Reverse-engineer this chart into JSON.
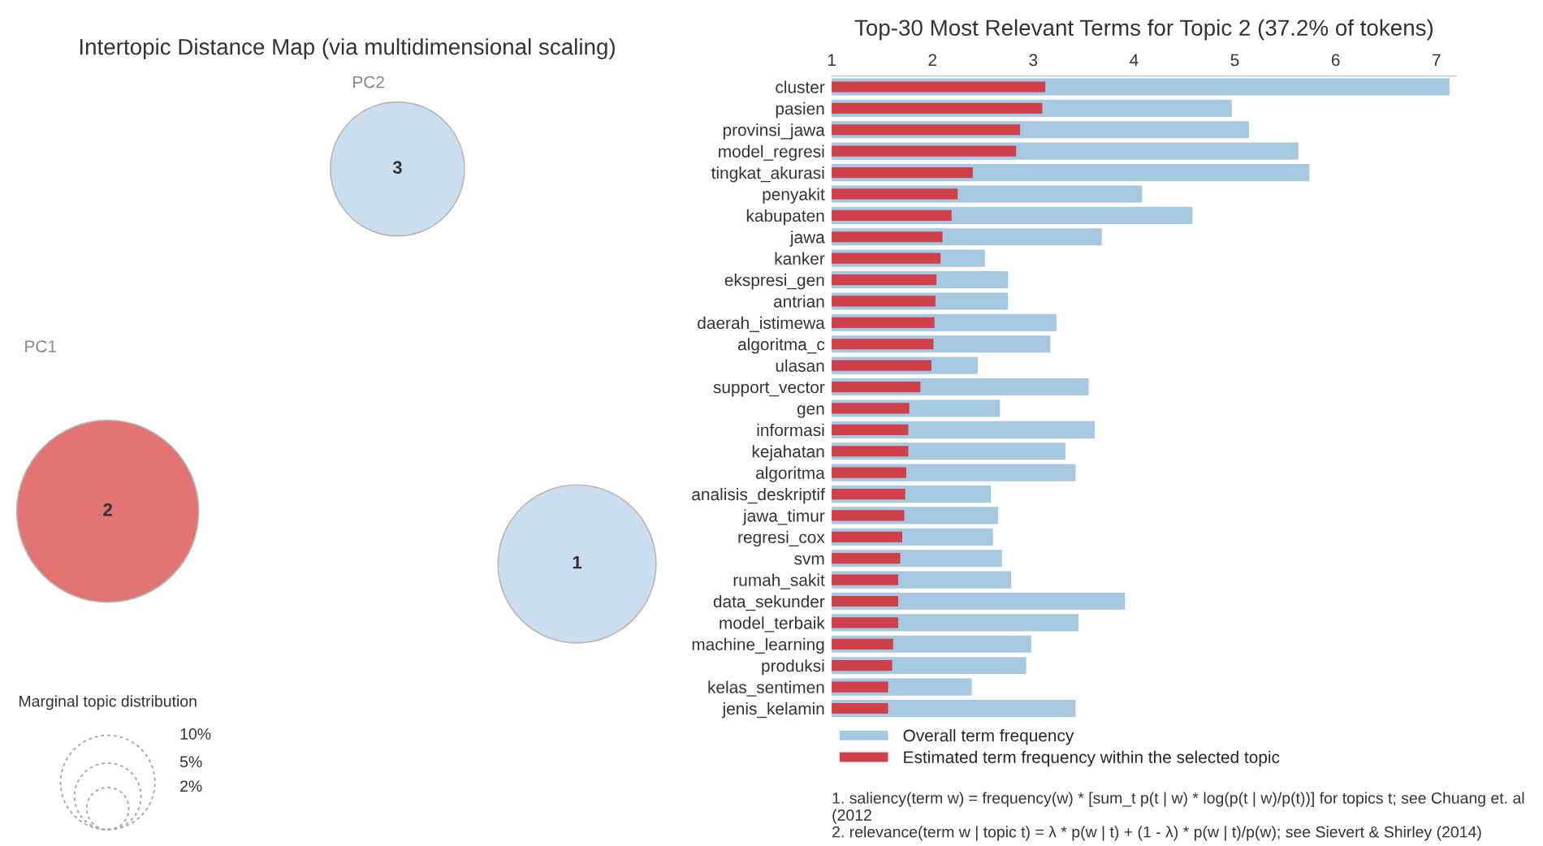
{
  "chart_data": [
    {
      "type": "other",
      "title": "Intertopic Distance Map (via multidimensional scaling)",
      "xlabel": "PC1",
      "ylabel": "PC2",
      "annotations": [
        "1",
        "2",
        "3",
        "Marginal topic distribution",
        "2%",
        "5%",
        "10%"
      ]
    },
    {
      "type": "bar",
      "orientation": "horizontal",
      "title": "Top-30 Most Relevant Terms for Topic 2 (37.2% of tokens)",
      "categories": [
        "cluster",
        "pasien",
        "provinsi_jawa",
        "model_regresi",
        "tingkat_akurasi",
        "penyakit",
        "kabupaten",
        "jawa",
        "kanker",
        "ekspresi_gen",
        "antrian",
        "daerah_istimewa",
        "algoritma_c",
        "ulasan",
        "support_vector",
        "gen",
        "informasi",
        "kejahatan",
        "algoritma",
        "analisis_deskriptif",
        "jawa_timur",
        "regresi_cox",
        "svm",
        "rumah_sakit",
        "data_sekunder",
        "model_terbaik",
        "machine_learning",
        "produksi",
        "kelas_sentimen",
        "jenis_kelamin"
      ],
      "series": [
        {
          "name": "Overall term frequency",
          "color": "#a6c8e0",
          "values": [
            7.13,
            4.97,
            5.14,
            5.63,
            5.74,
            4.08,
            4.58,
            3.68,
            2.52,
            2.75,
            2.75,
            3.23,
            3.17,
            2.45,
            3.55,
            2.67,
            3.61,
            3.32,
            3.42,
            2.58,
            2.65,
            2.6,
            2.69,
            2.78,
            3.91,
            3.45,
            2.98,
            2.93,
            2.39,
            3.42
          ]
        },
        {
          "name": "Estimated term frequency within the selected topic",
          "color": "#d0404a",
          "values": [
            3.12,
            3.09,
            2.87,
            2.83,
            2.4,
            2.25,
            2.19,
            2.1,
            2.08,
            2.04,
            2.03,
            2.02,
            2.01,
            1.99,
            1.88,
            1.77,
            1.76,
            1.76,
            1.74,
            1.73,
            1.72,
            1.7,
            1.68,
            1.66,
            1.66,
            1.66,
            1.61,
            1.6,
            1.56,
            1.56
          ]
        }
      ],
      "xlim": [
        1,
        7.2
      ],
      "xticks": [
        1,
        2,
        3,
        4,
        5,
        6,
        7
      ],
      "legend": "bottom",
      "annotations": [
        "1. saliency(term w) = frequency(w) * [sum_t p(t | w) * log(p(t | w)/p(t))] for topics t; see Chuang et. al (2012",
        "2. relevance(term w | topic t) = λ * p(w | t) + (1 - λ) * p(w | t)/p(w); see Sievert & Shirley (2014)"
      ]
    }
  ]
}
